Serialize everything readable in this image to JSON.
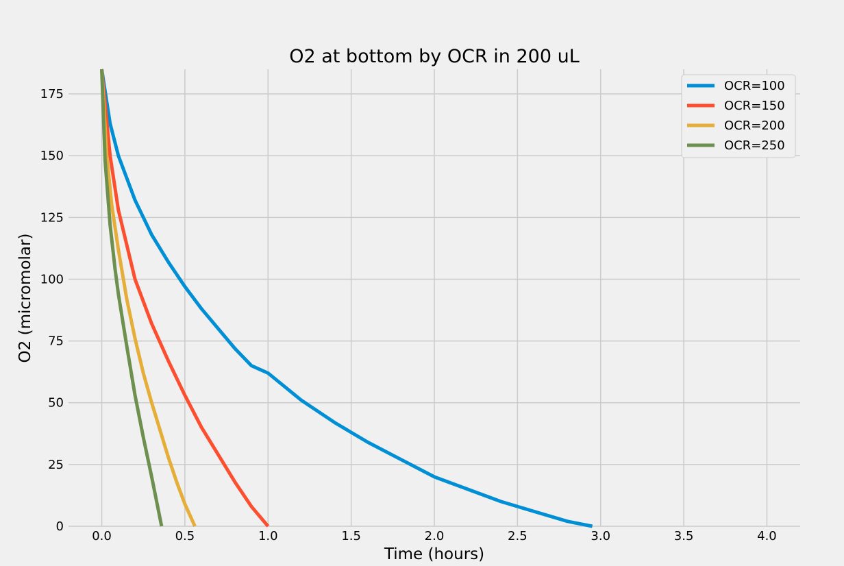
{
  "chart_data": {
    "type": "line",
    "title": "O2 at bottom by OCR in 200 uL",
    "xlabel": "Time (hours)",
    "ylabel": "O2 (micromolar)",
    "xlim": [
      -0.2,
      4.2
    ],
    "ylim": [
      0,
      185
    ],
    "xticks": [
      "0.0",
      "0.5",
      "1.0",
      "1.5",
      "2.0",
      "2.5",
      "3.0",
      "3.5",
      "4.0"
    ],
    "yticks": [
      "0",
      "25",
      "50",
      "75",
      "100",
      "125",
      "150",
      "175"
    ],
    "grid": true,
    "legend_position": "top-right",
    "series": [
      {
        "name": "OCR=100",
        "color": "#008fd5",
        "x": [
          0,
          0.05,
          0.1,
          0.2,
          0.3,
          0.4,
          0.5,
          0.6,
          0.7,
          0.8,
          0.9,
          1.0,
          1.2,
          1.4,
          1.6,
          1.8,
          2.0,
          2.2,
          2.4,
          2.6,
          2.8,
          2.95
        ],
        "y": [
          185,
          163,
          150,
          132,
          118,
          107,
          97,
          88,
          80,
          72,
          65,
          62,
          51,
          42,
          34,
          27,
          20,
          15,
          10,
          6,
          2,
          0
        ]
      },
      {
        "name": "OCR=150",
        "color": "#fc4f30",
        "x": [
          0,
          0.05,
          0.1,
          0.2,
          0.3,
          0.4,
          0.5,
          0.6,
          0.7,
          0.8,
          0.9,
          1.0
        ],
        "y": [
          185,
          150,
          128,
          100,
          82,
          67,
          53,
          40,
          29,
          18,
          8,
          0
        ]
      },
      {
        "name": "OCR=200",
        "color": "#e5ae38",
        "x": [
          0,
          0.03,
          0.06,
          0.1,
          0.15,
          0.2,
          0.25,
          0.3,
          0.35,
          0.4,
          0.45,
          0.5,
          0.56
        ],
        "y": [
          185,
          150,
          130,
          112,
          92,
          76,
          62,
          50,
          39,
          28,
          18,
          9,
          0
        ]
      },
      {
        "name": "OCR=250",
        "color": "#6d904f",
        "x": [
          0,
          0.02,
          0.05,
          0.08,
          0.1,
          0.15,
          0.2,
          0.25,
          0.3,
          0.36
        ],
        "y": [
          185,
          148,
          122,
          104,
          94,
          73,
          53,
          36,
          20,
          0
        ]
      }
    ]
  }
}
